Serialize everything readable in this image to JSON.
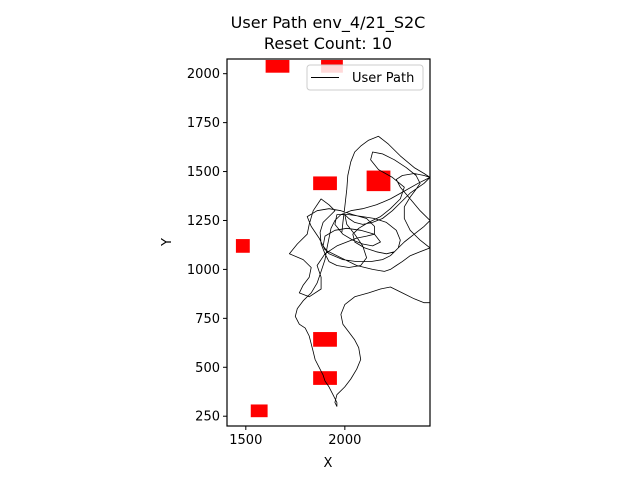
{
  "chart_data": {
    "type": "line",
    "title": "User Path env_4/21_S2C",
    "subtitle": "Reset Count: 10",
    "xlabel": "X",
    "ylabel": "Y",
    "xlim": [
      1405,
      2430
    ],
    "ylim": [
      200,
      2075
    ],
    "xticks": [
      1500,
      2000
    ],
    "yticks": [
      250,
      500,
      750,
      1000,
      1250,
      1500,
      1750,
      2000
    ],
    "legend": {
      "placement": "top-right",
      "entries": [
        "User Path"
      ]
    },
    "grid": false,
    "path_color": "#000000",
    "obstacle_color": "#ff0000",
    "obstacles": [
      {
        "x": [
          1600,
          1720
        ],
        "y": [
          2005,
          2070
        ]
      },
      {
        "x": [
          1880,
          1990
        ],
        "y": [
          2005,
          2070
        ]
      },
      {
        "x": [
          1840,
          1960
        ],
        "y": [
          1405,
          1475
        ]
      },
      {
        "x": [
          2110,
          2230
        ],
        "y": [
          1400,
          1505
        ]
      },
      {
        "x": [
          1450,
          1520
        ],
        "y": [
          1085,
          1155
        ]
      },
      {
        "x": [
          1840,
          1960
        ],
        "y": [
          605,
          680
        ]
      },
      {
        "x": [
          1840,
          1960
        ],
        "y": [
          410,
          480
        ]
      },
      {
        "x": [
          1525,
          1610
        ],
        "y": [
          245,
          310
        ]
      }
    ],
    "series": [
      {
        "name": "User Path",
        "x": [
          1985,
          1990,
          2000,
          2010,
          2015,
          2030,
          2050,
          2080,
          2120,
          2170,
          2220,
          2280,
          2350,
          2400,
          2430,
          2400,
          2330,
          2280,
          2240,
          2190,
          2140,
          2090,
          2050,
          2020,
          2000,
          2010,
          2050,
          2090,
          2110,
          2080,
          2020,
          1960,
          1920,
          1900,
          1880,
          1875,
          1890,
          1930,
          1950,
          1920,
          1880,
          1840,
          1820,
          1810,
          1760,
          1720,
          1790,
          1830,
          1820,
          1790,
          1770,
          1820,
          1880,
          1880,
          1860,
          1900,
          1960,
          2010,
          2060,
          2110,
          2150,
          2150,
          2110,
          2040,
          1980,
          1920,
          1860,
          1810,
          1830,
          1870,
          1900,
          1980,
          2060,
          2140,
          2200,
          2230,
          2260,
          2290,
          2330,
          2380,
          2430,
          2380,
          2330,
          2300,
          2300,
          2330,
          2360,
          2380,
          2360,
          2310,
          2250,
          2190,
          2140,
          2130,
          2170,
          2240,
          2300,
          2280,
          2230,
          2180,
          2120,
          2070,
          2040,
          2050,
          2100,
          2160,
          2210,
          2250,
          2270,
          2280,
          2260,
          2210,
          2150,
          2090,
          2020,
          1960,
          1950,
          1990,
          2040,
          2090,
          2140,
          2180,
          2150,
          2080,
          2010,
          1950,
          1900,
          1890,
          1920,
          1990,
          2060,
          2130,
          2190,
          2230,
          2250,
          2270,
          2300,
          2350,
          2400,
          2430,
          2380,
          2330,
          2280,
          2260,
          2290,
          2350,
          2400,
          2430,
          2370,
          2300,
          2230,
          2160,
          2090,
          2030,
          1980,
          1950,
          1930,
          1920,
          1910,
          1900,
          1880,
          1860,
          1830,
          1790,
          1760,
          1750,
          1770,
          1800,
          1820,
          1830,
          1840,
          1850,
          1870,
          1890,
          1900,
          1920,
          1940,
          1960,
          1960,
          1950,
          1960,
          2000,
          2030,
          2060,
          2080,
          2070,
          2050,
          2020,
          1990,
          1980,
          2000,
          2050,
          2120,
          2180,
          2230,
          2290,
          2350,
          2400,
          2430
        ],
        "y": [
          1190,
          1240,
          1320,
          1410,
          1480,
          1550,
          1600,
          1630,
          1660,
          1680,
          1640,
          1580,
          1520,
          1490,
          1470,
          1440,
          1390,
          1340,
          1300,
          1260,
          1240,
          1230,
          1240,
          1260,
          1280,
          1230,
          1180,
          1120,
          1060,
          1020,
          1010,
          1020,
          1040,
          1080,
          1130,
          1190,
          1240,
          1280,
          1300,
          1330,
          1360,
          1300,
          1230,
          1180,
          1130,
          1080,
          1050,
          1010,
          960,
          920,
          880,
          860,
          900,
          960,
          1020,
          1080,
          1120,
          1140,
          1160,
          1170,
          1180,
          1220,
          1260,
          1280,
          1300,
          1310,
          1300,
          1270,
          1220,
          1160,
          1100,
          1060,
          1020,
          1000,
          990,
          1000,
          1020,
          1040,
          1070,
          1090,
          1110,
          1150,
          1200,
          1260,
          1320,
          1370,
          1410,
          1440,
          1480,
          1520,
          1560,
          1590,
          1600,
          1560,
          1510,
          1470,
          1420,
          1360,
          1310,
          1270,
          1240,
          1210,
          1180,
          1140,
          1110,
          1090,
          1080,
          1090,
          1110,
          1150,
          1200,
          1240,
          1260,
          1270,
          1280,
          1280,
          1230,
          1180,
          1150,
          1130,
          1120,
          1140,
          1180,
          1200,
          1210,
          1200,
          1170,
          1120,
          1080,
          1050,
          1040,
          1040,
          1050,
          1070,
          1090,
          1110,
          1140,
          1180,
          1220,
          1250,
          1300,
          1360,
          1420,
          1460,
          1480,
          1490,
          1480,
          1470,
          1440,
          1400,
          1360,
          1330,
          1310,
          1300,
          1280,
          1250,
          1210,
          1160,
          1110,
          1050,
          990,
          930,
          880,
          840,
          800,
          760,
          720,
          700,
          660,
          620,
          580,
          540,
          500,
          460,
          430,
          400,
          360,
          320,
          300,
          320,
          360,
          400,
          440,
          490,
          540,
          600,
          640,
          680,
          720,
          770,
          820,
          860,
          880,
          900,
          910,
          880,
          850,
          830,
          830
        ]
      }
    ]
  }
}
